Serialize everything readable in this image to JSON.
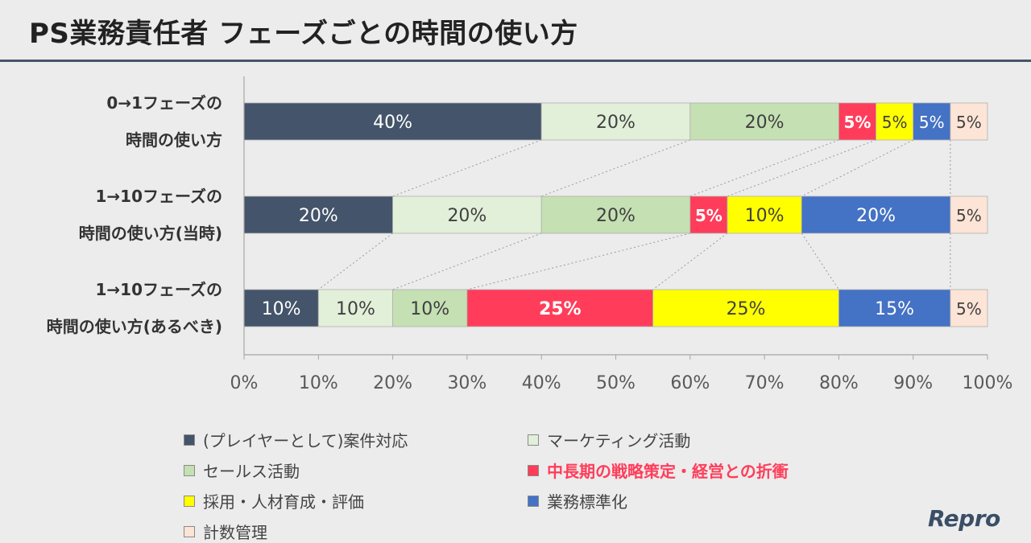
{
  "page": {
    "title": "PS業務責任者 フェーズごとの時間の使い方",
    "logo": "Repro"
  },
  "chart_data": {
    "type": "bar",
    "orientation": "horizontal",
    "stacked": true,
    "xlim": [
      0,
      100
    ],
    "xticks": [
      "0%",
      "10%",
      "20%",
      "30%",
      "40%",
      "50%",
      "60%",
      "70%",
      "80%",
      "90%",
      "100%"
    ],
    "rows": [
      {
        "label_lines": [
          "0→1フェーズの",
          "時間の使い方"
        ]
      },
      {
        "label_lines": [
          "1→10フェーズの",
          "時間の使い方(当時)"
        ]
      },
      {
        "label_lines": [
          "1→10フェーズの",
          "時間の使い方(あるべき)"
        ]
      }
    ],
    "series": [
      {
        "name": "(プレイヤーとして)案件対応",
        "color": "#44546a",
        "text_color": "#ffffff",
        "bold": false,
        "values": [
          40,
          20,
          10
        ],
        "labels": [
          "40%",
          "20%",
          "10%"
        ]
      },
      {
        "name": "マーケティング活動",
        "color": "#e2efd9",
        "text_color": "#404040",
        "bold": false,
        "values": [
          20,
          20,
          10
        ],
        "labels": [
          "20%",
          "20%",
          "10%"
        ]
      },
      {
        "name": "セールス活動",
        "color": "#c5e0b3",
        "text_color": "#404040",
        "bold": false,
        "values": [
          20,
          20,
          10
        ],
        "labels": [
          "20%",
          "20%",
          "10%"
        ]
      },
      {
        "name": "中長期の戦略策定・経営との折衝",
        "color": "#ff3d5a",
        "text_color": "#ffffff",
        "bold": true,
        "values": [
          5,
          5,
          25
        ],
        "labels": [
          "5%",
          "5%",
          "25%"
        ]
      },
      {
        "name": "採用・人材育成・評価",
        "color": "#ffff00",
        "text_color": "#404040",
        "bold": false,
        "values": [
          5,
          10,
          25
        ],
        "labels": [
          "5%",
          "10%",
          "25%"
        ]
      },
      {
        "name": "業務標準化",
        "color": "#4472c4",
        "text_color": "#ffffff",
        "bold": false,
        "values": [
          5,
          20,
          15
        ],
        "labels": [
          "5%",
          "20%",
          "15%"
        ]
      },
      {
        "name": "計数管理",
        "color": "#fce4d6",
        "text_color": "#404040",
        "bold": false,
        "values": [
          5,
          5,
          5
        ],
        "labels": [
          "5%",
          "5%",
          "5%"
        ]
      }
    ]
  }
}
